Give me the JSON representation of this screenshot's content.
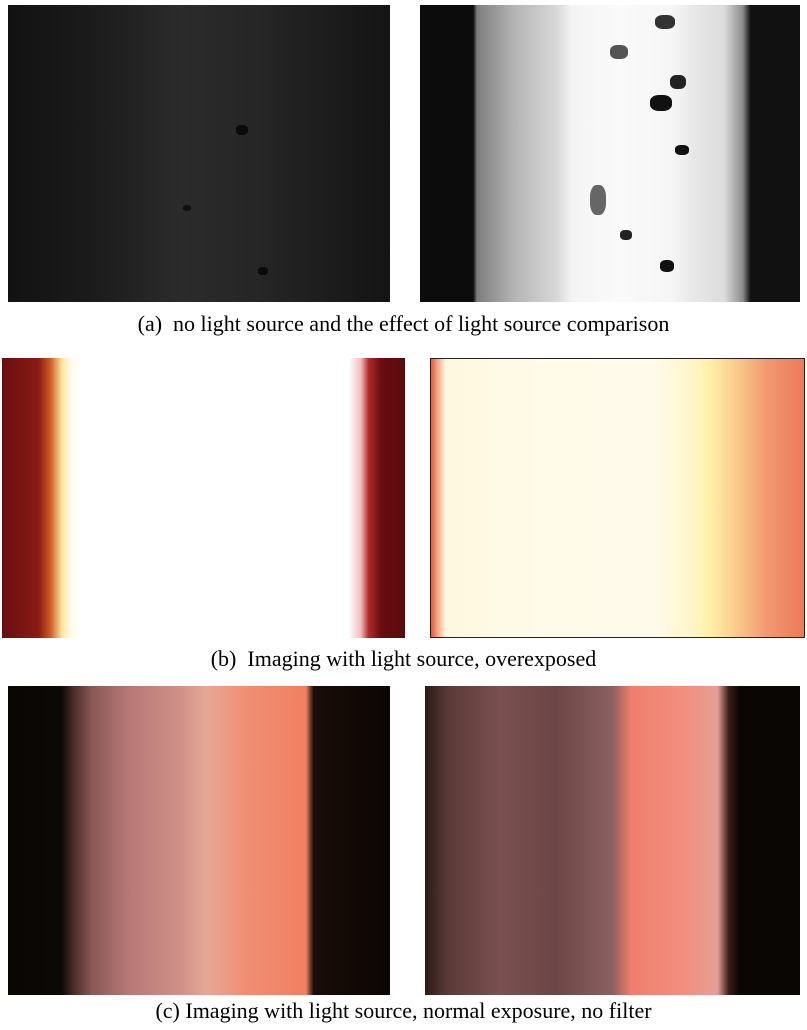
{
  "captions": {
    "a": "(a)  no light source and the effect of light source comparison",
    "b": "(b)  Imaging with light source, overexposed",
    "c": "(c) Imaging with light source, normal exposure, no filter"
  }
}
